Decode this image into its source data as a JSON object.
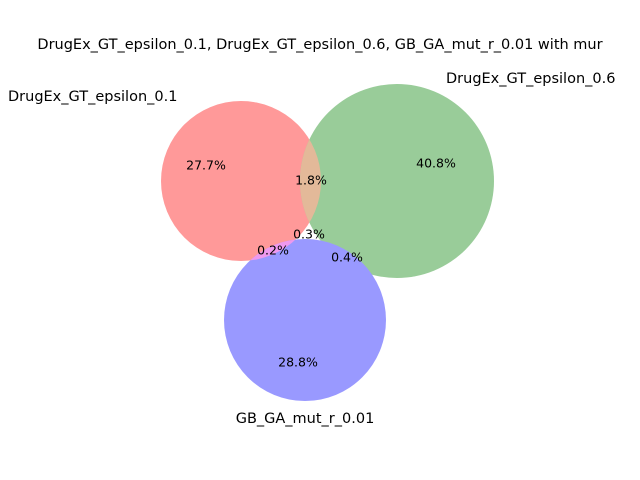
{
  "chart_data": {
    "type": "venn3",
    "title": "DrugEx_GT_epsilon_0.1, DrugEx_GT_epsilon_0.6, GB_GA_mut_r_0.01 with mur",
    "sets": [
      {
        "name": "DrugEx_GT_epsilon_0.1",
        "color": "#ff9999"
      },
      {
        "name": "DrugEx_GT_epsilon_0.6",
        "color": "#99cc99"
      },
      {
        "name": "GB_GA_mut_r_0.01",
        "color": "#9999ff"
      }
    ],
    "regions": [
      {
        "sets": [
          "DrugEx_GT_epsilon_0.1"
        ],
        "label": "27.7%",
        "value": 27.7
      },
      {
        "sets": [
          "DrugEx_GT_epsilon_0.6"
        ],
        "label": "40.8%",
        "value": 40.8
      },
      {
        "sets": [
          "GB_GA_mut_r_0.01"
        ],
        "label": "28.8%",
        "value": 28.8
      },
      {
        "sets": [
          "DrugEx_GT_epsilon_0.1",
          "DrugEx_GT_epsilon_0.6"
        ],
        "label": "1.8%",
        "value": 1.8
      },
      {
        "sets": [
          "DrugEx_GT_epsilon_0.1",
          "GB_GA_mut_r_0.01"
        ],
        "label": "0.2%",
        "value": 0.2
      },
      {
        "sets": [
          "DrugEx_GT_epsilon_0.6",
          "GB_GA_mut_r_0.01"
        ],
        "label": "0.4%",
        "value": 0.4
      },
      {
        "sets": [
          "DrugEx_GT_epsilon_0.1",
          "DrugEx_GT_epsilon_0.6",
          "GB_GA_mut_r_0.01"
        ],
        "label": "0.3%",
        "value": 0.3
      }
    ],
    "overlap_colors": {
      "ab": "#e3b999",
      "ac": "#ee99ee"
    }
  }
}
